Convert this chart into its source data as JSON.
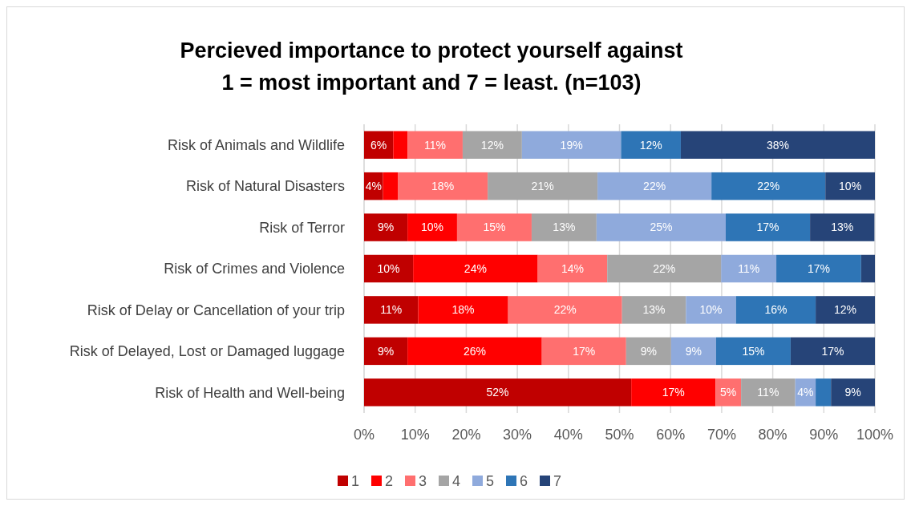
{
  "chart_data": {
    "type": "bar",
    "orientation": "horizontal",
    "stacked": true,
    "title": "Percieved importance to protect yourself against\n1 = most important and 7 = least. (n=103)",
    "categories": [
      "Risk of Animals and Wildlife",
      "Risk of Natural Disasters",
      "Risk of Terror",
      "Risk of Crimes and Violence",
      "Risk of Delay or Cancellation of your trip",
      "Risk of Delayed, Lost or Damaged luggage",
      "Risk of Health and Well-being"
    ],
    "series": [
      {
        "name": "1",
        "color": "#c00000",
        "values": [
          5.7,
          3.7,
          8.5,
          9.6,
          10.6,
          8.5,
          52.3
        ],
        "value_labels": [
          "6%",
          "4%",
          "9%",
          "10%",
          "11%",
          "9%",
          "52%"
        ]
      },
      {
        "name": "2",
        "color": "#ff0000",
        "values": [
          2.8,
          2.9,
          9.7,
          24.4,
          17.6,
          26.3,
          16.5
        ],
        "value_labels": [
          null,
          null,
          "10%",
          "24%",
          "18%",
          "26%",
          "17%"
        ]
      },
      {
        "name": "3",
        "color": "#ff6f6f",
        "values": [
          10.8,
          17.6,
          14.6,
          13.6,
          22.3,
          16.5,
          5.0
        ],
        "value_labels": [
          "11%",
          "18%",
          "15%",
          "14%",
          "22%",
          "17%",
          "5%"
        ]
      },
      {
        "name": "4",
        "color": "#a5a5a5",
        "values": [
          11.6,
          21.5,
          12.7,
          22.3,
          12.5,
          8.8,
          10.6
        ],
        "value_labels": [
          "12%",
          "21%",
          "13%",
          "22%",
          "13%",
          "9%",
          "11%"
        ]
      },
      {
        "name": "5",
        "color": "#8faadc",
        "values": [
          19.4,
          22.3,
          25.3,
          10.8,
          9.8,
          8.8,
          4.0
        ],
        "value_labels": [
          "19%",
          "22%",
          "25%",
          "11%",
          "10%",
          "9%",
          "4%"
        ]
      },
      {
        "name": "6",
        "color": "#2e75b6",
        "values": [
          11.7,
          22.3,
          16.5,
          16.6,
          15.6,
          14.6,
          3.0
        ],
        "value_labels": [
          "12%",
          "22%",
          "17%",
          "17%",
          "16%",
          "15%",
          null
        ]
      },
      {
        "name": "7",
        "color": "#264478",
        "values": [
          38.0,
          9.7,
          12.6,
          2.7,
          11.6,
          16.5,
          8.6
        ],
        "value_labels": [
          "38%",
          "10%",
          "13%",
          null,
          "12%",
          "17%",
          "9%"
        ]
      }
    ],
    "xlim": [
      0,
      100
    ],
    "xticks": [
      {
        "value": 0,
        "label": "0%"
      },
      {
        "value": 10,
        "label": "10%"
      },
      {
        "value": 20,
        "label": "20%"
      },
      {
        "value": 30,
        "label": "30%"
      },
      {
        "value": 40,
        "label": "40%"
      },
      {
        "value": 50,
        "label": "50%"
      },
      {
        "value": 60,
        "label": "60%"
      },
      {
        "value": 70,
        "label": "70%"
      },
      {
        "value": 80,
        "label": "80%"
      },
      {
        "value": 90,
        "label": "90%"
      },
      {
        "value": 100,
        "label": "100%"
      }
    ],
    "grid": "x",
    "legend": "bottom"
  }
}
